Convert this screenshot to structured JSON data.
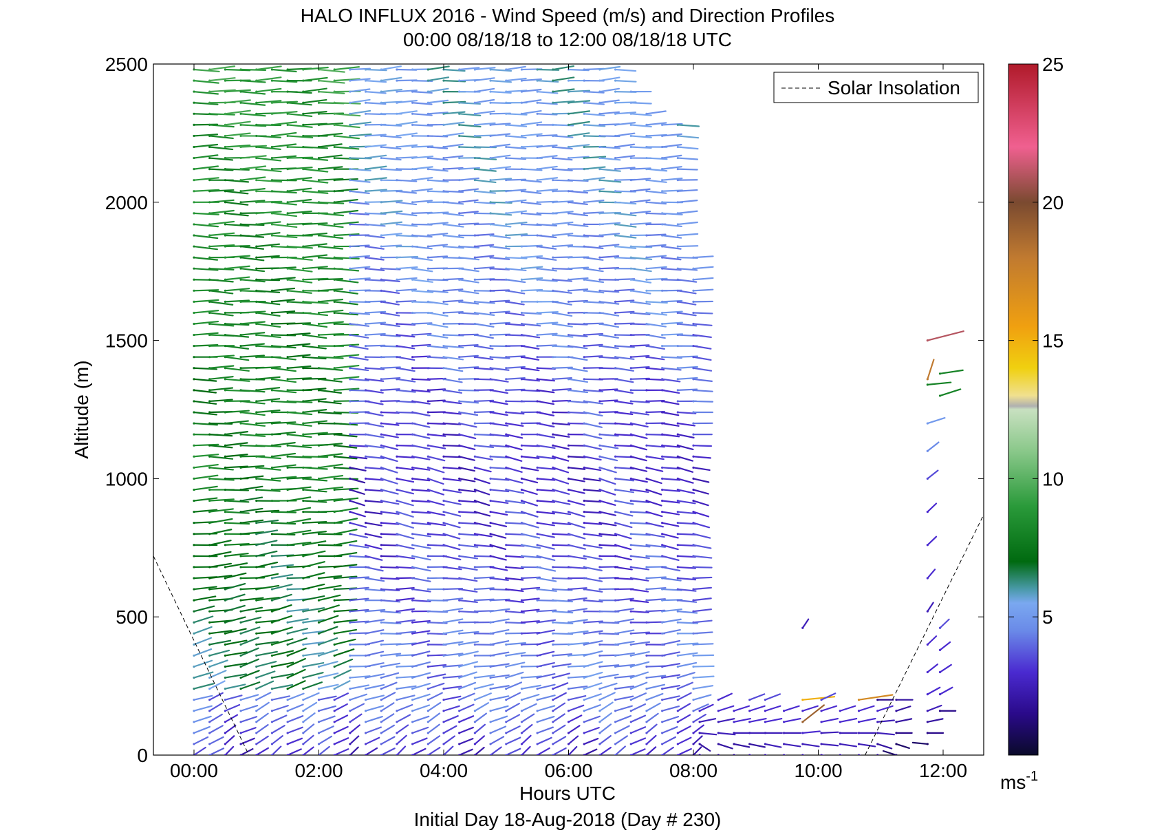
{
  "chart_data": {
    "type": "wind-barb-profile",
    "title": "HALO INFLUX 2016 - Wind Speed (m/s) and Direction Profiles",
    "subtitle": "00:00 08/18/18 to 12:00 08/18/18  UTC",
    "xlabel": "Hours UTC",
    "ylabel": "Altitude (m)",
    "footer": "Initial Day 18-Aug-2018 (Day # 230)",
    "xlim": [
      -0.65,
      12.65
    ],
    "ylim": [
      0,
      2500
    ],
    "xticks": [
      0,
      2,
      4,
      6,
      8,
      10,
      12
    ],
    "xtick_labels": [
      "00:00",
      "02:00",
      "04:00",
      "06:00",
      "08:00",
      "10:00",
      "12:00"
    ],
    "yticks": [
      0,
      500,
      1000,
      1500,
      2000,
      2500
    ],
    "ytick_labels": [
      "0",
      "500",
      "1000",
      "1500",
      "2000",
      "2500"
    ],
    "legend": {
      "label": "Solar Insolation",
      "position": "top-right",
      "style": "dashed"
    },
    "colorbar": {
      "range": [
        0,
        25
      ],
      "ticks": [
        5,
        10,
        15,
        20,
        25
      ],
      "tick_labels": [
        "5",
        "10",
        "15",
        "20",
        "25"
      ],
      "unit": "ms",
      "unit_exponent": "-1"
    },
    "solar_insolation": {
      "evening": [
        [
          -0.65,
          720
        ],
        [
          0.88,
          0
        ]
      ],
      "morning": [
        [
          10.75,
          0
        ],
        [
          12.65,
          870
        ]
      ]
    },
    "profiles_main": {
      "times": [
        0,
        0.25,
        0.5,
        0.75,
        1.0,
        1.25,
        1.5,
        1.75,
        2.0,
        2.25,
        2.5,
        2.75,
        3.0,
        3.25,
        3.5,
        3.75,
        4.0,
        4.25,
        4.5,
        4.75,
        5.0,
        5.25,
        5.5,
        5.75,
        6.0,
        6.25,
        6.5,
        6.75,
        7.0,
        7.25,
        7.5,
        7.75,
        8.0
      ],
      "top_altitude": [
        2500,
        2500,
        2500,
        2500,
        2500,
        2500,
        2500,
        2500,
        2500,
        2500,
        2500,
        2500,
        2500,
        2500,
        2500,
        2500,
        2500,
        2500,
        2500,
        2500,
        2500,
        2500,
        2500,
        2500,
        2500,
        2500,
        2500,
        2500,
        2400,
        2350,
        2300,
        2300,
        1800
      ],
      "altitude_step": 40,
      "speed_layers": [
        {
          "alt": 0,
          "speed": 3.0,
          "dir": 220
        },
        {
          "alt": 150,
          "speed": 4.2,
          "dir": 230
        },
        {
          "alt": 300,
          "speed": 4.5,
          "dir": 255
        },
        {
          "alt": 500,
          "speed": 4.0,
          "dir": 265
        },
        {
          "alt": 750,
          "speed": 3.5,
          "dir": 285
        },
        {
          "alt": 1000,
          "speed": 3.0,
          "dir": 290
        },
        {
          "alt": 1300,
          "speed": 3.5,
          "dir": 275
        },
        {
          "alt": 1600,
          "speed": 4.5,
          "dir": 275
        },
        {
          "alt": 2000,
          "speed": 5.0,
          "dir": 270
        },
        {
          "alt": 2500,
          "speed": 5.5,
          "dir": 265
        }
      ],
      "early_layers": [
        {
          "alt": 0,
          "speed": 3.5,
          "dir": 215
        },
        {
          "alt": 250,
          "speed": 6.5,
          "dir": 240
        },
        {
          "alt": 600,
          "speed": 7.0,
          "dir": 255
        },
        {
          "alt": 1000,
          "speed": 8.0,
          "dir": 268
        },
        {
          "alt": 1500,
          "speed": 8.0,
          "dir": 272
        },
        {
          "alt": 2000,
          "speed": 8.5,
          "dir": 270
        },
        {
          "alt": 2500,
          "speed": 9.0,
          "dir": 268
        }
      ],
      "early_until_hour": 2.25
    },
    "profiles_late": [
      {
        "t": 8.1,
        "alt": [
          0,
          40,
          80,
          120,
          160
        ],
        "speed": [
          1.5,
          2.0,
          2.5,
          2.5,
          3.0
        ],
        "dir": [
          300,
          320,
          280,
          250,
          230
        ]
      },
      {
        "t": 8.4,
        "alt": [
          0,
          40,
          80,
          120,
          160,
          200
        ],
        "speed": [
          1.5,
          2.0,
          2.5,
          2.5,
          3.0,
          3.0
        ],
        "dir": [
          310,
          300,
          280,
          250,
          240,
          230
        ]
      },
      {
        "t": 8.65,
        "alt": [
          0,
          40,
          80,
          120,
          160
        ],
        "speed": [
          1.5,
          2.0,
          2.5,
          3.0,
          3.0
        ],
        "dir": [
          300,
          290,
          270,
          250,
          240
        ]
      },
      {
        "t": 8.9,
        "alt": [
          0,
          40,
          80,
          120,
          160,
          200
        ],
        "speed": [
          2.0,
          2.0,
          2.5,
          3.0,
          3.0,
          3.5
        ],
        "dir": [
          300,
          290,
          270,
          250,
          240,
          235
        ]
      },
      {
        "t": 9.15,
        "alt": [
          0,
          40,
          80,
          120,
          160,
          200
        ],
        "speed": [
          2.0,
          2.5,
          2.5,
          3.0,
          3.0,
          3.5
        ],
        "dir": [
          300,
          290,
          270,
          250,
          240,
          235
        ]
      },
      {
        "t": 9.45,
        "alt": [
          0,
          40,
          80,
          120,
          160
        ],
        "speed": [
          2.0,
          2.5,
          2.5,
          3.0,
          3.0
        ],
        "dir": [
          300,
          285,
          270,
          250,
          240
        ]
      },
      {
        "t": 9.75,
        "alt": [
          0,
          40,
          80,
          120,
          160,
          200,
          460
        ],
        "speed": [
          2.0,
          2.5,
          3.0,
          19.0,
          3.0,
          15.0,
          2.5
        ],
        "dir": [
          300,
          285,
          260,
          215,
          240,
          260,
          200
        ]
      },
      {
        "t": 10.05,
        "alt": [
          0,
          40,
          80,
          120,
          160,
          200
        ],
        "speed": [
          2.0,
          2.5,
          2.5,
          3.0,
          3.0,
          3.5
        ],
        "dir": [
          290,
          280,
          265,
          250,
          240,
          230
        ]
      },
      {
        "t": 10.35,
        "alt": [
          0,
          40,
          80,
          120,
          160
        ],
        "speed": [
          2.0,
          2.5,
          2.5,
          3.0,
          3.0
        ],
        "dir": [
          300,
          285,
          270,
          250,
          240
        ]
      },
      {
        "t": 10.65,
        "alt": [
          0,
          40,
          80,
          120,
          160,
          200
        ],
        "speed": [
          2.0,
          2.5,
          2.5,
          3.0,
          3.0,
          17.0
        ],
        "dir": [
          300,
          285,
          270,
          250,
          240,
          255
        ]
      },
      {
        "t": 10.95,
        "alt": [
          0,
          40,
          80,
          120,
          160,
          200
        ],
        "speed": [
          1.5,
          2.0,
          2.5,
          2.5,
          3.0,
          1.5
        ],
        "dir": [
          310,
          300,
          280,
          260,
          240,
          270
        ]
      },
      {
        "t": 11.25,
        "alt": [
          0,
          40,
          80,
          120,
          160,
          200
        ],
        "speed": [
          1.0,
          1.0,
          1.5,
          2.0,
          2.0,
          2.0
        ],
        "dir": [
          120,
          300,
          270,
          250,
          240,
          270
        ]
      },
      {
        "t": 11.75,
        "alt": [
          40,
          80,
          120,
          160,
          220,
          300,
          400,
          520,
          640,
          760,
          880,
          1000,
          1100,
          1200,
          1340,
          1360,
          1500
        ],
        "speed": [
          1.0,
          1.5,
          2.0,
          2.5,
          3.0,
          3.0,
          3.0,
          2.5,
          3.0,
          3.0,
          3.0,
          3.5,
          4.5,
          5.0,
          8.0,
          18.0,
          21.0
        ],
        "dir": [
          100,
          270,
          250,
          235,
          225,
          215,
          210,
          200,
          205,
          210,
          210,
          215,
          215,
          240,
          260,
          190,
          245
        ]
      },
      {
        "t": 11.95,
        "alt": [
          160,
          220,
          300,
          380,
          460,
          1300,
          1380
        ],
        "speed": [
          1.5,
          3.0,
          3.0,
          3.0,
          3.5,
          8.0,
          8.0
        ],
        "dir": [
          270,
          225,
          220,
          215,
          210,
          240,
          255
        ]
      }
    ]
  }
}
